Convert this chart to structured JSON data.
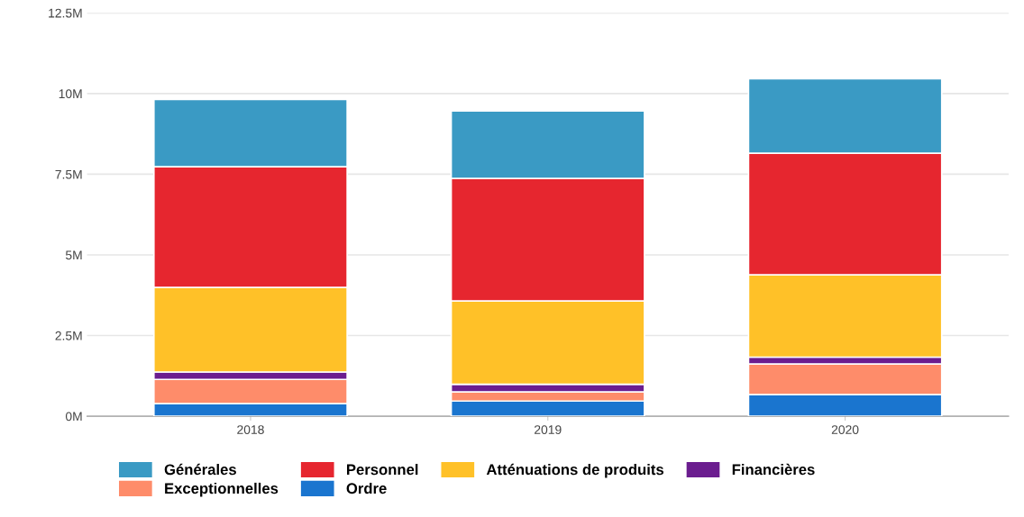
{
  "chart_data": {
    "type": "bar",
    "stacked": true,
    "categories": [
      "2018",
      "2019",
      "2020"
    ],
    "series": [
      {
        "name": "Ordre",
        "color": "#1a75cf",
        "values": [
          0.39,
          0.47,
          0.67
        ]
      },
      {
        "name": "Exceptionnelles",
        "color": "#fe8c6a",
        "values": [
          0.75,
          0.28,
          0.95
        ]
      },
      {
        "name": "Financières",
        "color": "#6b1d8f",
        "values": [
          0.23,
          0.24,
          0.21
        ]
      },
      {
        "name": "Atténuations de produits",
        "color": "#ffc128",
        "values": [
          2.62,
          2.58,
          2.55
        ]
      },
      {
        "name": "Personnel",
        "color": "#e6262f",
        "values": [
          3.74,
          3.8,
          3.77
        ]
      },
      {
        "name": "Générales",
        "color": "#3a9ac4",
        "values": [
          2.09,
          2.09,
          2.31
        ]
      }
    ],
    "ylim": [
      0,
      12.5
    ],
    "yticks": [
      {
        "value": 0,
        "label": "0M"
      },
      {
        "value": 2.5,
        "label": "2.5M"
      },
      {
        "value": 5,
        "label": "5M"
      },
      {
        "value": 7.5,
        "label": "7.5M"
      },
      {
        "value": 10,
        "label": "10M"
      },
      {
        "value": 12.5,
        "label": "12.5M"
      }
    ],
    "grid": "y",
    "legend": "bottom"
  }
}
